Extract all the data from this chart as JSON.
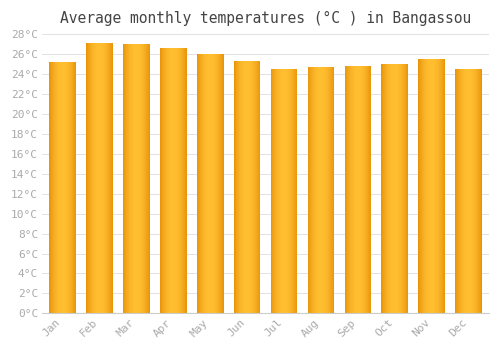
{
  "title": "Average monthly temperatures (°C ) in Bangassou",
  "months": [
    "Jan",
    "Feb",
    "Mar",
    "Apr",
    "May",
    "Jun",
    "Jul",
    "Aug",
    "Sep",
    "Oct",
    "Nov",
    "Dec"
  ],
  "values": [
    25.2,
    27.1,
    27.0,
    26.6,
    26.0,
    25.3,
    24.5,
    24.7,
    24.8,
    25.0,
    25.5,
    24.5
  ],
  "bar_color_left": "#E8930A",
  "bar_color_mid": "#FFBE30",
  "bar_color_right": "#E8930A",
  "background_color": "#FFFFFF",
  "grid_color": "#DDDDDD",
  "title_color": "#444444",
  "tick_color": "#AAAAAA",
  "ylim": [
    0,
    28
  ],
  "ytick_interval": 2,
  "title_fontsize": 10.5,
  "tick_fontsize": 8
}
